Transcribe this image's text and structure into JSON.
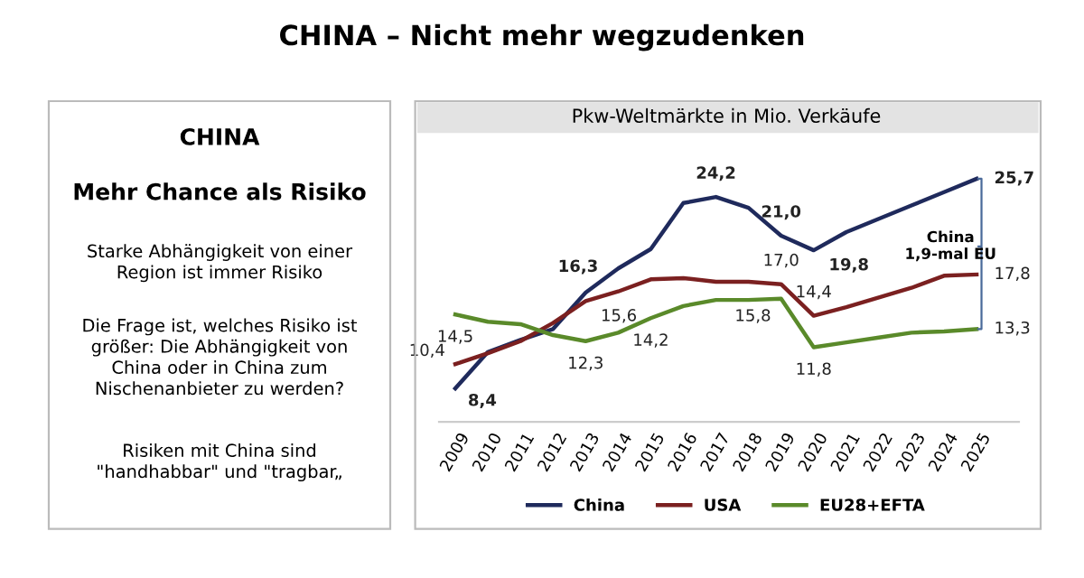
{
  "chart_data": {
    "type": "line",
    "title": "CHINA – Nicht mehr wegzudenken",
    "subtitle": "Pkw-Weltmärkte in Mio. Verkäufe",
    "categories": [
      "2009",
      "2010",
      "2011",
      "2012",
      "2013",
      "2014",
      "2015",
      "2016",
      "2017",
      "2018",
      "2019",
      "2020",
      "2021",
      "2022",
      "2023",
      "2024",
      "2025"
    ],
    "series": [
      {
        "name": "China",
        "color": "#1f2a5c",
        "values": [
          8.4,
          11.4,
          12.4,
          13.3,
          16.3,
          18.3,
          19.9,
          23.7,
          24.2,
          23.3,
          21.0,
          19.8,
          21.3,
          22.4,
          23.5,
          24.6,
          25.7
        ],
        "value_labels": [
          "8,4",
          null,
          null,
          null,
          "16,3",
          null,
          null,
          null,
          "24,2",
          null,
          "21,0",
          "19,8",
          null,
          null,
          null,
          null,
          "25,7"
        ]
      },
      {
        "name": "USA",
        "color": "#7b2020",
        "values": [
          10.4,
          11.3,
          12.3,
          13.8,
          15.6,
          16.4,
          17.4,
          17.5,
          17.2,
          17.2,
          17.0,
          14.4,
          15.1,
          15.9,
          16.7,
          17.7,
          17.8
        ],
        "value_labels": [
          "10,4",
          null,
          null,
          null,
          "15,6",
          null,
          null,
          null,
          null,
          null,
          "17,0",
          "14,4",
          null,
          null,
          null,
          null,
          "17,8"
        ]
      },
      {
        "name": "EU28+EFTA",
        "color": "#5a8a2a",
        "values": [
          14.5,
          13.9,
          13.7,
          12.8,
          12.3,
          13.0,
          14.2,
          15.2,
          15.7,
          15.7,
          15.8,
          11.8,
          12.2,
          12.6,
          13.0,
          13.1,
          13.3
        ],
        "value_labels": [
          "14,5",
          null,
          null,
          null,
          "12,3",
          null,
          "14,2",
          null,
          null,
          null,
          "15,8",
          "11,8",
          null,
          null,
          null,
          null,
          "13,3"
        ]
      }
    ],
    "legend": "bottom",
    "grid": false,
    "marker": "none",
    "line_style": "solid",
    "annotations": [
      "CHINA",
      "Mehr Chance als Risiko",
      "Starke Abhängigkeit von einer\nRegion ist immer Risiko",
      "Die Frage ist, welches Risiko ist\ngrößer: Die Abhängigkeit von\nChina oder in China zum\nNischenanbieter zu werden?",
      "Risiken mit China sind\n\"handhabbar\" und \"tragbar„",
      "China\n1,9-mal EU"
    ]
  }
}
